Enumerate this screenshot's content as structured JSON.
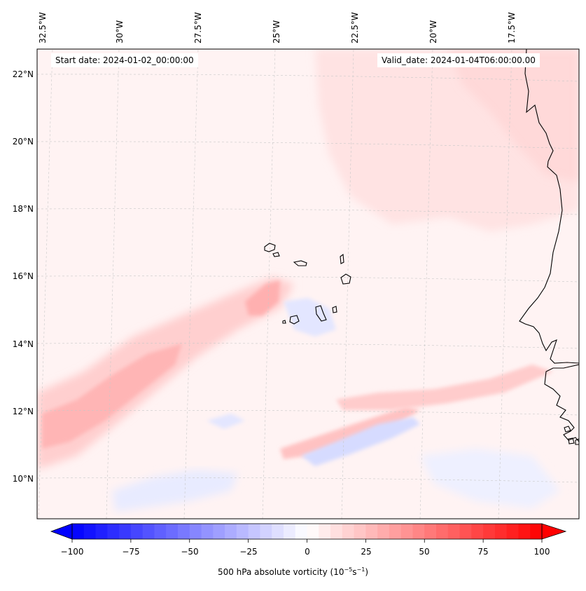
{
  "map": {
    "start_date": "Start date: 2024-01-02_00:00:00",
    "valid_date": "Valid_date: 2024-01-04T06:00:00.00",
    "longitude_labels": [
      "32.5°W",
      "30°W",
      "27.5°W",
      "25°W",
      "22.5°W",
      "20°W",
      "17.5°W"
    ],
    "latitude_labels": [
      "22°N",
      "20°N",
      "18°N",
      "16°N",
      "14°N",
      "12°N",
      "10°N"
    ],
    "variable": "500 hPa absolute vorticity",
    "units_base": "10",
    "units_exp1": "−5",
    "units_mid": "s",
    "units_exp2": "−1"
  },
  "colorbar": {
    "min": -100,
    "max": 100,
    "ticks": [
      "−100",
      "−75",
      "−50",
      "−25",
      "0",
      "25",
      "50",
      "75",
      "100"
    ],
    "negative_color": "#0000ff",
    "neutral_color": "#ffffff",
    "positive_color": "#ff0000"
  },
  "colors": {
    "coastline": "#000000",
    "grid": "#c8c8c8",
    "background_tint": "#fff4f4"
  }
}
